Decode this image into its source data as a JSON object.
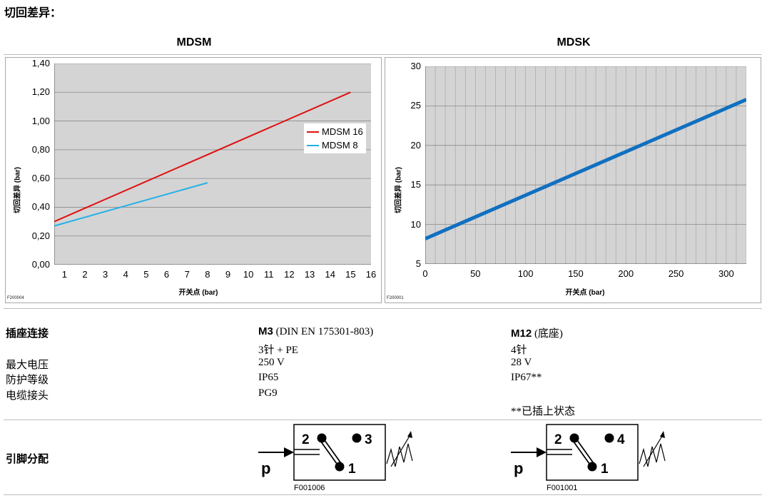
{
  "page": {
    "heading": "切回差异：",
    "connector_heading": "插座连接",
    "pin_heading": "引脚分配"
  },
  "labels": {
    "max_voltage": "最大电压",
    "protection": "防护等级",
    "cable_gland": "电缆接头"
  },
  "chart_data": [
    {
      "type": "line",
      "title": "MDSM",
      "xlabel": "开关点 (bar)",
      "ylabel": "切回差异 (bar)",
      "xlim": [
        0.5,
        16
      ],
      "ylim": [
        0,
        1.4
      ],
      "x_ticks": [
        "1",
        "2",
        "3",
        "4",
        "5",
        "6",
        "7",
        "8",
        "9",
        "10",
        "11",
        "12",
        "13",
        "14",
        "15",
        "16"
      ],
      "y_ticks": [
        "0,00",
        "0,20",
        "0,40",
        "0,60",
        "0,80",
        "1,00",
        "1,20",
        "1,40"
      ],
      "grid": "horizontal",
      "legend_position": "right",
      "figure_code": "F200004",
      "series": [
        {
          "name": "MDSM 16",
          "color": "#e01010",
          "x": [
            0.5,
            15
          ],
          "y": [
            0.3,
            1.2
          ]
        },
        {
          "name": "MDSM 8",
          "color": "#20b0e8",
          "x": [
            0.5,
            8
          ],
          "y": [
            0.27,
            0.57
          ]
        }
      ]
    },
    {
      "type": "line",
      "title": "MDSK",
      "xlabel": "开关点 (bar)",
      "ylabel": "切回差异 (bar)",
      "xlim": [
        0,
        320
      ],
      "ylim": [
        5,
        30
      ],
      "x_ticks": [
        "0",
        "50",
        "100",
        "150",
        "200",
        "250",
        "300"
      ],
      "y_ticks": [
        "5",
        "10",
        "15",
        "20",
        "25",
        "30"
      ],
      "grid": "both",
      "figure_code": "F200001",
      "series": [
        {
          "color": "#1070c0",
          "x": [
            0,
            320
          ],
          "y": [
            8.2,
            25.8
          ]
        }
      ]
    }
  ],
  "m3": {
    "name": "M3",
    "standard": " (DIN EN 175301-803)",
    "pins": "3针 + PE",
    "voltage": "250 V",
    "protection": "IP65",
    "gland": "PG9",
    "diagram": {
      "pin_a": "2",
      "pin_b": "3",
      "pin_c": "1",
      "p": "p",
      "code": "F001006"
    }
  },
  "m12": {
    "name": "M12",
    "standard": " (底座)",
    "pins": "4针",
    "voltage": "28 V",
    "protection": "IP67**",
    "note": "**已插上状态",
    "diagram": {
      "pin_a": "2",
      "pin_b": "4",
      "pin_c": "1",
      "p": "p",
      "code": "F001001"
    }
  }
}
